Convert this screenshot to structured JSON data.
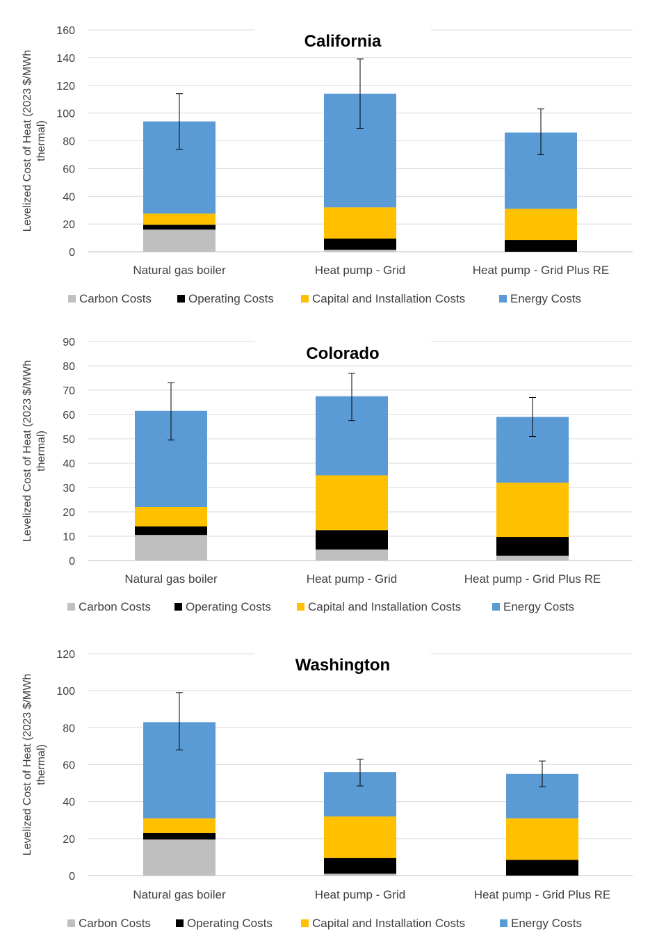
{
  "chart_data": [
    {
      "type": "bar",
      "stacked": true,
      "title": "California",
      "ylabel": "Levelized Cost of Heat (2023 $/MWh thermal)",
      "ylim": [
        0,
        160
      ],
      "yticks": [
        0,
        20,
        40,
        60,
        80,
        100,
        120,
        140,
        160
      ],
      "grid": true,
      "legend_position": "bottom",
      "categories": [
        "Natural gas boiler",
        "Heat pump - Grid",
        "Heat pump - Grid Plus RE"
      ],
      "series": [
        {
          "name": "Carbon Costs",
          "color": "#bfbfbf",
          "values": [
            16,
            1.5,
            0
          ]
        },
        {
          "name": "Operating Costs",
          "color": "#000000",
          "values": [
            3.5,
            8,
            8.5
          ]
        },
        {
          "name": "Capital and Installation Costs",
          "color": "#ffc000",
          "values": [
            8,
            22.5,
            22.5
          ]
        },
        {
          "name": "Energy Costs",
          "color": "#5b9bd5",
          "values": [
            66.5,
            82,
            55
          ]
        }
      ],
      "error_bars": [
        {
          "low": 74,
          "high": 114
        },
        {
          "low": 89,
          "high": 139
        },
        {
          "low": 70,
          "high": 103
        }
      ]
    },
    {
      "type": "bar",
      "stacked": true,
      "title": "Colorado",
      "ylabel": "Levelized Cost of Heat (2023 $/MWh thermal)",
      "ylim": [
        0,
        90
      ],
      "yticks": [
        0,
        10,
        20,
        30,
        40,
        50,
        60,
        70,
        80,
        90
      ],
      "grid": true,
      "legend_position": "bottom",
      "categories": [
        "Natural gas boiler",
        "Heat pump - Grid",
        "Heat pump - Grid Plus RE"
      ],
      "series": [
        {
          "name": "Carbon Costs",
          "color": "#bfbfbf",
          "values": [
            10.5,
            4.5,
            2
          ]
        },
        {
          "name": "Operating Costs",
          "color": "#000000",
          "values": [
            3.5,
            8,
            7.7
          ]
        },
        {
          "name": "Capital and Installation Costs",
          "color": "#ffc000",
          "values": [
            8,
            22.5,
            22.3
          ]
        },
        {
          "name": "Energy Costs",
          "color": "#5b9bd5",
          "values": [
            39.5,
            32.5,
            27
          ]
        }
      ],
      "error_bars": [
        {
          "low": 49.5,
          "high": 73
        },
        {
          "low": 57.5,
          "high": 77
        },
        {
          "low": 51,
          "high": 67
        }
      ]
    },
    {
      "type": "bar",
      "stacked": true,
      "title": "Washington",
      "ylabel": "Levelized Cost of Heat (2023 $/MWh thermal)",
      "ylim": [
        0,
        120
      ],
      "yticks": [
        0,
        20,
        40,
        60,
        80,
        100,
        120
      ],
      "grid": true,
      "legend_position": "bottom",
      "categories": [
        "Natural gas boiler",
        "Heat pump - Grid",
        "Heat pump - Grid Plus RE"
      ],
      "series": [
        {
          "name": "Carbon Costs",
          "color": "#bfbfbf",
          "values": [
            19.5,
            1,
            0
          ]
        },
        {
          "name": "Operating Costs",
          "color": "#000000",
          "values": [
            3.5,
            8.5,
            8.5
          ]
        },
        {
          "name": "Capital and Installation Costs",
          "color": "#ffc000",
          "values": [
            8,
            22.5,
            22.5
          ]
        },
        {
          "name": "Energy Costs",
          "color": "#5b9bd5",
          "values": [
            52,
            24,
            24
          ]
        }
      ],
      "error_bars": [
        {
          "low": 68,
          "high": 99
        },
        {
          "low": 48.5,
          "high": 63
        },
        {
          "low": 48,
          "high": 62
        }
      ]
    }
  ]
}
